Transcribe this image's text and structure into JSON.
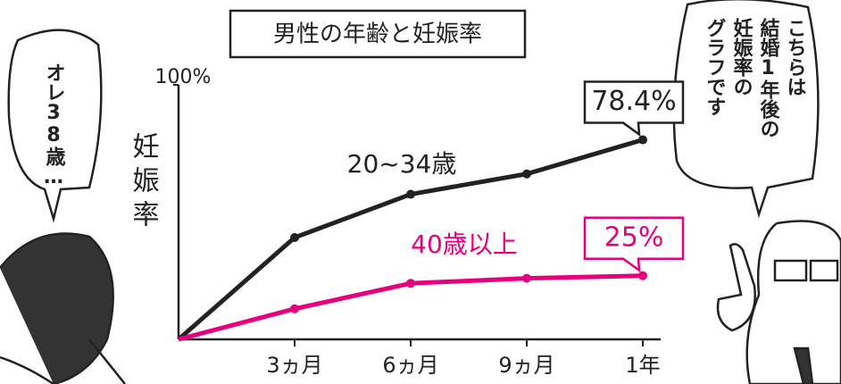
{
  "chart_data": {
    "type": "line",
    "title": "男性の年齢と妊娠率",
    "ylabel": "妊娠率",
    "categories": [
      null,
      "3ヵ月",
      "6ヵ月",
      "9ヵ月",
      "1年"
    ],
    "ylim": [
      0,
      100
    ],
    "yticks": [
      {
        "value": 100,
        "label": "100%"
      }
    ],
    "grid": false,
    "series": [
      {
        "name": "20~34歳",
        "color": "#222222",
        "values": [
          0,
          40,
          57,
          65,
          78.4
        ],
        "value_labels": [
          null,
          null,
          null,
          null,
          "78.4%"
        ]
      },
      {
        "name": "40歳以上",
        "color": "#e6007e",
        "values": [
          0,
          12,
          22,
          24,
          25
        ],
        "value_labels": [
          null,
          null,
          null,
          null,
          "25%"
        ]
      }
    ],
    "annotations": [
      {
        "speaker": "left",
        "lines": [
          "オレ38歳…"
        ]
      },
      {
        "speaker": "right",
        "lines": [
          "こちらは",
          "結婚1年後の",
          "妊娠率の",
          "グラフです"
        ]
      }
    ]
  }
}
